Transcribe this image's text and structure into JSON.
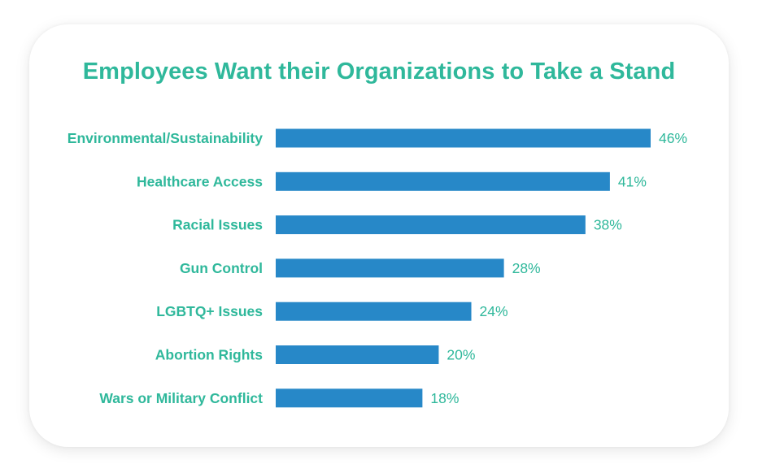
{
  "colors": {
    "title": "#2fb89b",
    "labels": "#2fb89b",
    "bar": "#2788c8",
    "card_background": "#ffffff"
  },
  "chart_data": {
    "type": "bar",
    "orientation": "horizontal",
    "title": "Employees Want their Organizations to Take a Stand",
    "categories": [
      "Environmental/Sustainability",
      "Healthcare Access",
      "Racial Issues",
      "Gun Control",
      "LGBTQ+ Issues",
      "Abortion Rights",
      "Wars or Military Conflict"
    ],
    "values": [
      46,
      41,
      38,
      28,
      24,
      20,
      18
    ],
    "value_labels": [
      "46%",
      "41%",
      "38%",
      "28%",
      "24%",
      "20%",
      "18%"
    ],
    "unit": "%",
    "xlim": [
      0,
      46
    ],
    "grid": false,
    "legend": "none"
  }
}
